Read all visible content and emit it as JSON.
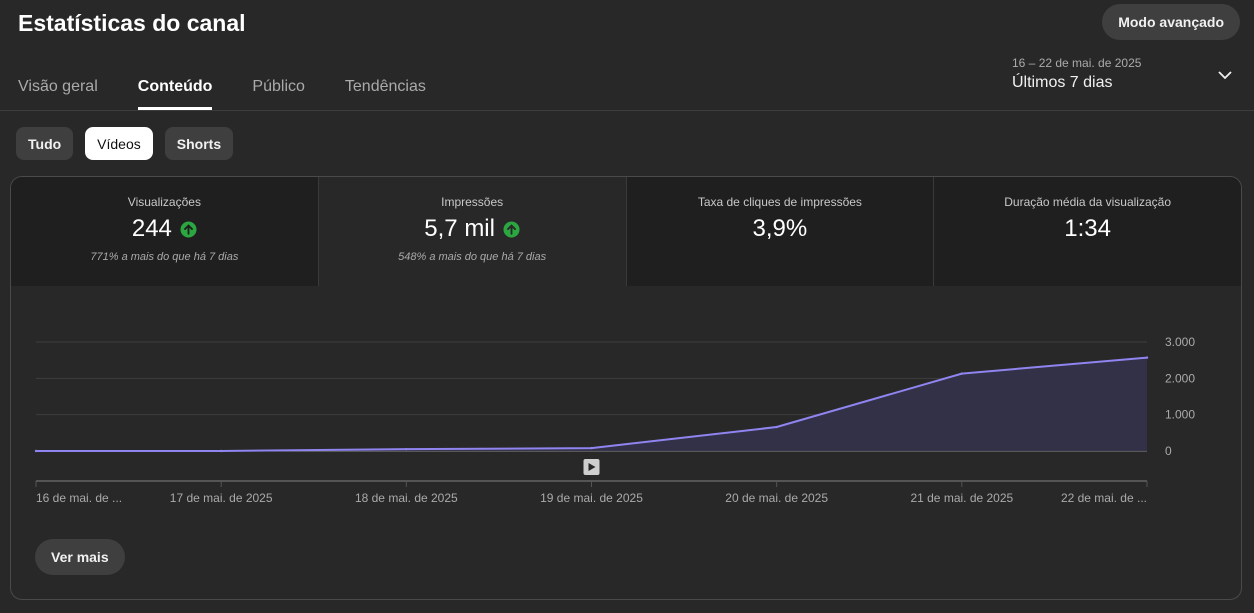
{
  "header": {
    "title": "Estatísticas do canal",
    "advanced_button": "Modo avançado"
  },
  "tabs": [
    {
      "label": "Visão geral",
      "active": false
    },
    {
      "label": "Conteúdo",
      "active": true
    },
    {
      "label": "Público",
      "active": false
    },
    {
      "label": "Tendências",
      "active": false
    }
  ],
  "date_picker": {
    "range": "16 – 22 de mai. de 2025",
    "period": "Últimos 7 dias",
    "icon": "chevron-down-icon"
  },
  "filters": [
    {
      "label": "Tudo",
      "active": false
    },
    {
      "label": "Vídeos",
      "active": true
    },
    {
      "label": "Shorts",
      "active": false
    }
  ],
  "metrics": [
    {
      "label": "Visualizações",
      "value": "244",
      "trend_icon": "arrow-up-circle-icon",
      "note": "771% a mais do que há 7 dias",
      "selected": false
    },
    {
      "label": "Impressões",
      "value": "5,7 mil",
      "trend_icon": "arrow-up-circle-icon",
      "note": "548% a mais do que há 7 dias",
      "selected": true
    },
    {
      "label": "Taxa de cliques de impressões",
      "value": "3,9%",
      "selected": false
    },
    {
      "label": "Duração média da visualização",
      "value": "1:34",
      "selected": false
    }
  ],
  "colors": {
    "accent_line": "#8f84f0",
    "area_fill": "#34324a",
    "trend_up": "#2ba640",
    "background": "#282828"
  },
  "chart_data": {
    "type": "area",
    "x": [
      "16 de mai. de ...",
      "17 de mai. de 2025",
      "18 de mai. de 2025",
      "19 de mai. de 2025",
      "20 de mai. de 2025",
      "21 de mai. de 2025",
      "22 de mai. de ..."
    ],
    "values": [
      0,
      0,
      50,
      80,
      660,
      2130,
      2570
    ],
    "ylim": [
      0,
      3000
    ],
    "y_ticks": [
      {
        "value": 3000,
        "label": "3.000"
      },
      {
        "value": 2000,
        "label": "2.000"
      },
      {
        "value": 1000,
        "label": "1.000"
      },
      {
        "value": 0,
        "label": "0"
      }
    ],
    "grid": true,
    "marker_icon": "video-play-icon"
  },
  "footer": {
    "more_button": "Ver mais"
  }
}
